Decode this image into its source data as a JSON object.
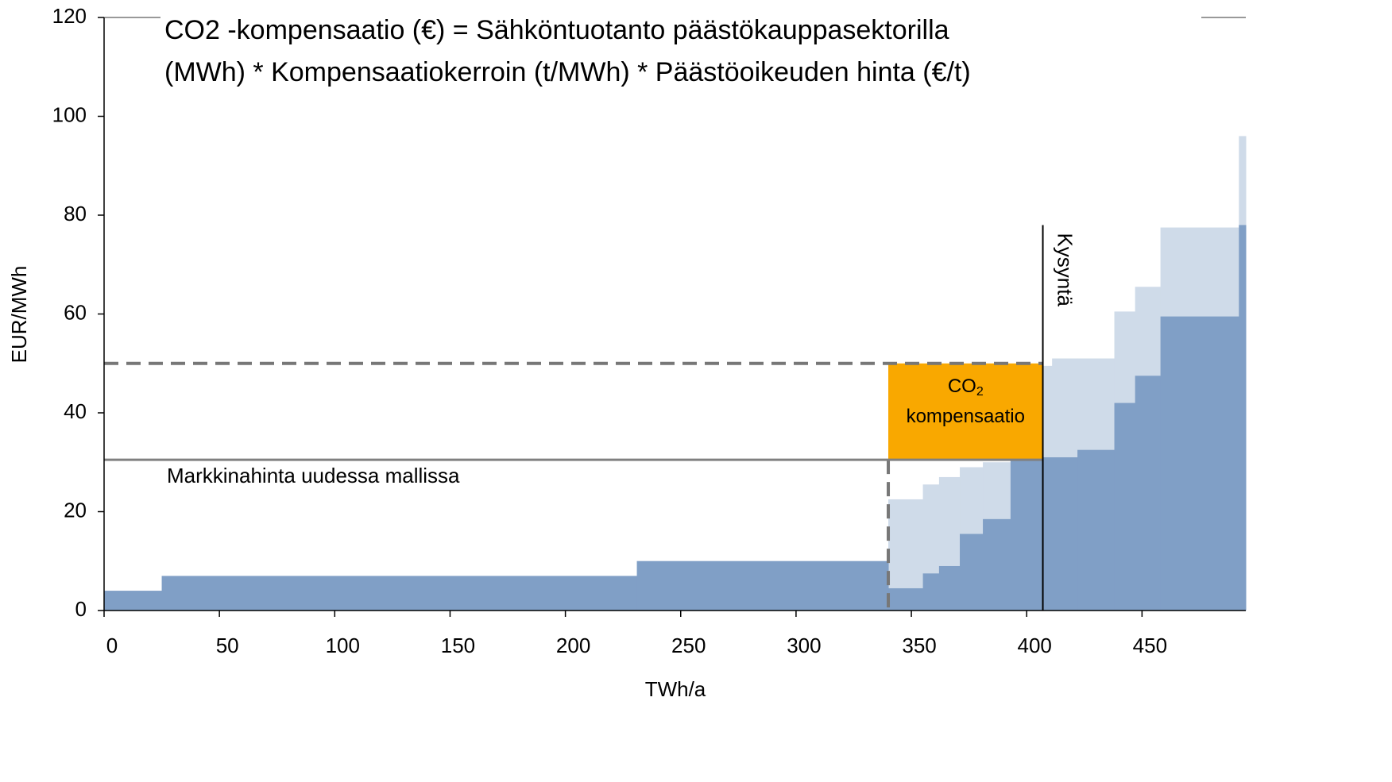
{
  "chart_data": {
    "type": "step",
    "title_lines": [
      "CO2  -kompensaatio (€) = Sähköntuotanto päästökauppasektorilla",
      "(MWh) * Kompensaatiokerroin (t/MWh) * Päästöoikeuden hinta (€/t)"
    ],
    "xlabel": "TWh/a",
    "ylabel": "EUR/MWh",
    "xlim": [
      0,
      495
    ],
    "ylim": [
      0,
      120
    ],
    "xticks": [
      0,
      50,
      100,
      150,
      200,
      250,
      300,
      350,
      400,
      450
    ],
    "yticks": [
      0,
      20,
      40,
      60,
      80,
      100,
      120
    ],
    "x_edges": [
      0,
      25,
      231,
      340,
      355,
      362,
      371,
      381,
      393,
      407,
      411,
      422,
      438,
      447,
      458,
      492,
      495
    ],
    "series": [
      {
        "color": "#cfdbe9",
        "values": [
          4,
          7,
          10,
          22.5,
          25.5,
          27,
          29,
          30,
          49,
          49.5,
          51,
          51,
          60.5,
          65.5,
          77.5,
          96
        ]
      },
      {
        "color": "#809fc6",
        "values": [
          4,
          7,
          10,
          4.5,
          7.5,
          9,
          15.5,
          18.5,
          30.5,
          31,
          31,
          32.5,
          42,
          47.5,
          59.5,
          78
        ]
      }
    ],
    "market_price": {
      "label": "Markkinahinta uudessa mallissa",
      "value": 30.5
    },
    "compensated_price": {
      "value": 50
    },
    "threshold_x": 340,
    "demand": {
      "label": "Kysyntä",
      "x": 407,
      "top": 78
    },
    "compensation_box": {
      "color": "#f9a800",
      "label_main": "CO",
      "label_sub": "2",
      "label_rest": "kompensaatio"
    }
  }
}
